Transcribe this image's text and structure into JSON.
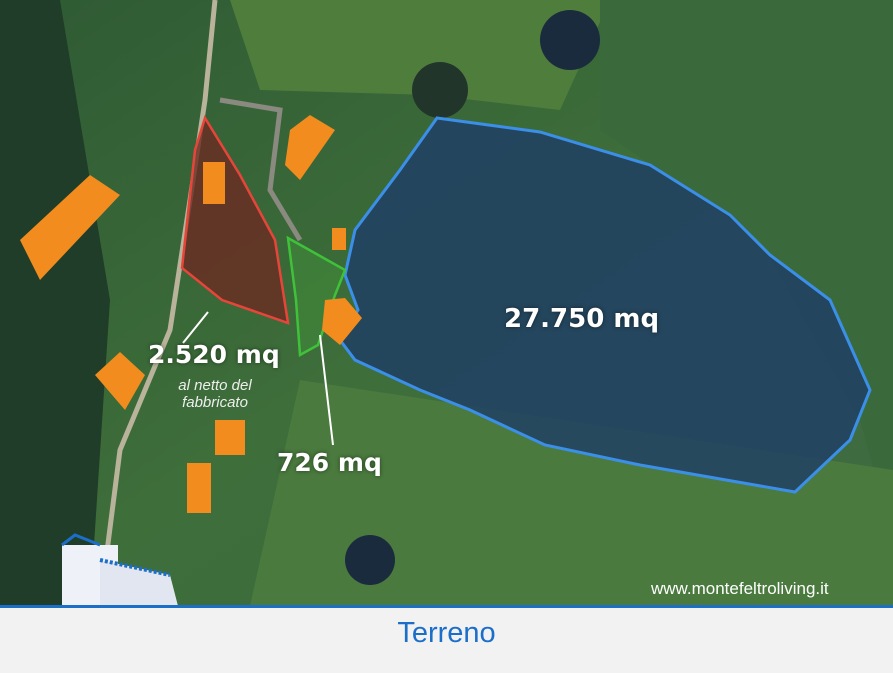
{
  "parcels": [
    {
      "area_label": "2.520 mq",
      "note": "al netto del fabbricato",
      "color": "#e8453a"
    },
    {
      "area_label": "726 mq",
      "color": "#3fc23a"
    },
    {
      "area_label": "27.750 mq",
      "color": "#3b8fe8"
    }
  ],
  "website": "www.montefeltroliving.it",
  "title": "Terreno",
  "accent_color": "#1c6fc9",
  "building_color": "#f28c1e"
}
